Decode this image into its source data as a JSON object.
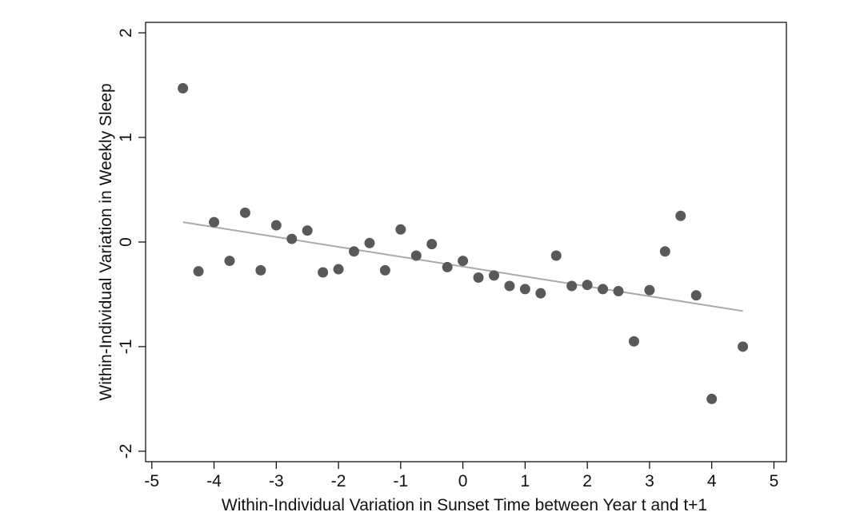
{
  "chart_data": {
    "type": "scatter",
    "title": "",
    "xlabel": "Within-Individual Variation in Sunset Time between Year t and t+1",
    "ylabel": "Within-Individual Variation in Weekly Sleep",
    "xlim": [
      -5.1,
      5.2
    ],
    "ylim": [
      -2.1,
      2.1
    ],
    "x_ticks": [
      "-5",
      "-4",
      "-3",
      "-2",
      "-1",
      "0",
      "1",
      "2",
      "3",
      "4",
      "5"
    ],
    "y_ticks": [
      "-2",
      "-1",
      "0",
      "1",
      "2"
    ],
    "grid": false,
    "legend": "none",
    "series": [
      {
        "points": [
          {
            "x": -4.5,
            "y": 1.47
          },
          {
            "x": -4.25,
            "y": -0.28
          },
          {
            "x": -4.0,
            "y": 0.19
          },
          {
            "x": -3.75,
            "y": -0.18
          },
          {
            "x": -3.5,
            "y": 0.28
          },
          {
            "x": -3.25,
            "y": -0.27
          },
          {
            "x": -3.0,
            "y": 0.16
          },
          {
            "x": -2.75,
            "y": 0.03
          },
          {
            "x": -2.5,
            "y": 0.11
          },
          {
            "x": -2.25,
            "y": -0.29
          },
          {
            "x": -2.0,
            "y": -0.26
          },
          {
            "x": -1.75,
            "y": -0.09
          },
          {
            "x": -1.5,
            "y": -0.01
          },
          {
            "x": -1.25,
            "y": -0.27
          },
          {
            "x": -1.0,
            "y": 0.12
          },
          {
            "x": -0.75,
            "y": -0.13
          },
          {
            "x": -0.5,
            "y": -0.02
          },
          {
            "x": -0.25,
            "y": -0.24
          },
          {
            "x": 0.0,
            "y": -0.18
          },
          {
            "x": 0.25,
            "y": -0.34
          },
          {
            "x": 0.5,
            "y": -0.32
          },
          {
            "x": 0.75,
            "y": -0.42
          },
          {
            "x": 1.0,
            "y": -0.45
          },
          {
            "x": 1.25,
            "y": -0.49
          },
          {
            "x": 1.5,
            "y": -0.13
          },
          {
            "x": 1.75,
            "y": -0.42
          },
          {
            "x": 2.0,
            "y": -0.41
          },
          {
            "x": 2.25,
            "y": -0.45
          },
          {
            "x": 2.5,
            "y": -0.47
          },
          {
            "x": 2.75,
            "y": -0.95
          },
          {
            "x": 3.0,
            "y": -0.46
          },
          {
            "x": 3.25,
            "y": -0.09
          },
          {
            "x": 3.5,
            "y": 0.25
          },
          {
            "x": 3.75,
            "y": -0.51
          },
          {
            "x": 4.0,
            "y": -1.5
          },
          {
            "x": 4.5,
            "y": -1.0
          }
        ]
      }
    ],
    "fit_line": {
      "x": [
        -4.5,
        4.5
      ],
      "y": [
        0.19,
        -0.66
      ]
    },
    "colors": {
      "points": "#595959",
      "fit_line": "#aaaaaa",
      "axes": "#000000"
    }
  }
}
